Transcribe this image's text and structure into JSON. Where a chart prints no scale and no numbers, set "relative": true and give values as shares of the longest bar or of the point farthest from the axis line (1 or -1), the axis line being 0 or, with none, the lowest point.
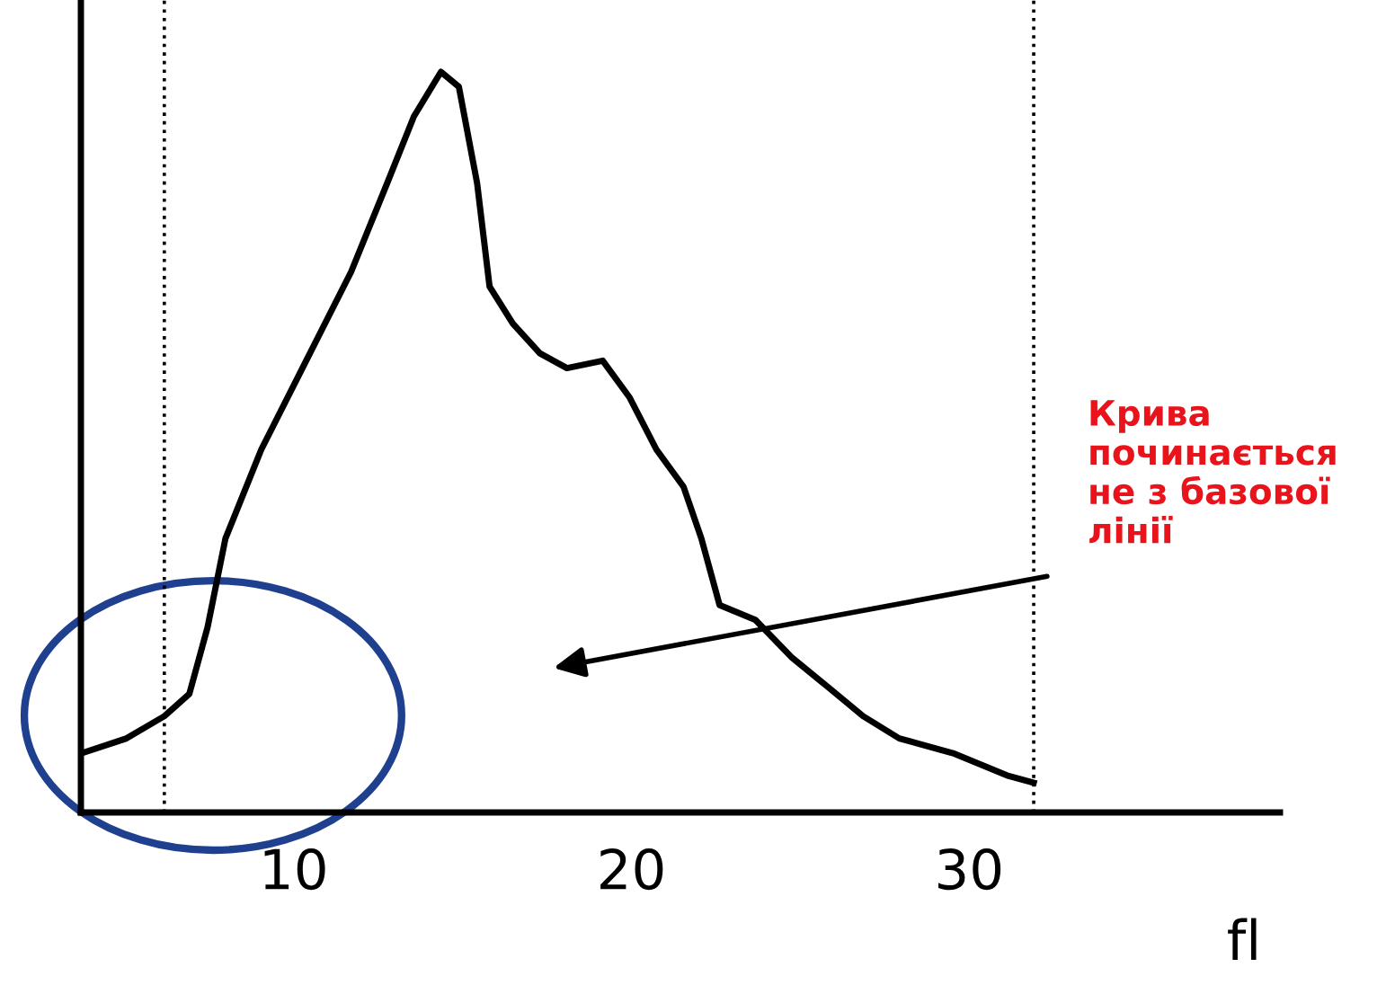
{
  "chart_data": {
    "type": "line",
    "relative": true,
    "xlabel": "fl",
    "xlim": [
      3.7,
      39.2
    ],
    "xticks": [
      10,
      20,
      30
    ],
    "series": [
      {
        "color": "#000000",
        "x": [
          3.72,
          5.05,
          6.17,
          6.91,
          7.45,
          7.98,
          9.04,
          10.37,
          11.7,
          12.77,
          13.56,
          14.36,
          14.89,
          15.43,
          15.8,
          16.49,
          17.29,
          18.09,
          19.15,
          19.95,
          20.74,
          21.54,
          22.07,
          22.61,
          23.67,
          24.73,
          25.8,
          26.86,
          27.93,
          29.52,
          31.12,
          31.91
        ],
        "values": [
          0.08,
          0.1,
          0.13,
          0.16,
          0.25,
          0.37,
          0.49,
          0.61,
          0.73,
          0.85,
          0.94,
          1.0,
          0.98,
          0.85,
          0.71,
          0.66,
          0.62,
          0.6,
          0.61,
          0.56,
          0.49,
          0.44,
          0.37,
          0.28,
          0.26,
          0.21,
          0.17,
          0.13,
          0.1,
          0.08,
          0.05,
          0.04
        ]
      }
    ],
    "ref_lines": [
      {
        "axis": "x",
        "value": 6.17,
        "color": "#000000",
        "line_style": "dotted"
      },
      {
        "axis": "x",
        "value": 31.91,
        "color": "#000000",
        "line_style": "dotted"
      }
    ],
    "annotations": [
      "Крива\nпочинається\nне з базової\nлінії"
    ],
    "grid": false,
    "legend": false,
    "line_style": "solid",
    "marker": "none"
  }
}
